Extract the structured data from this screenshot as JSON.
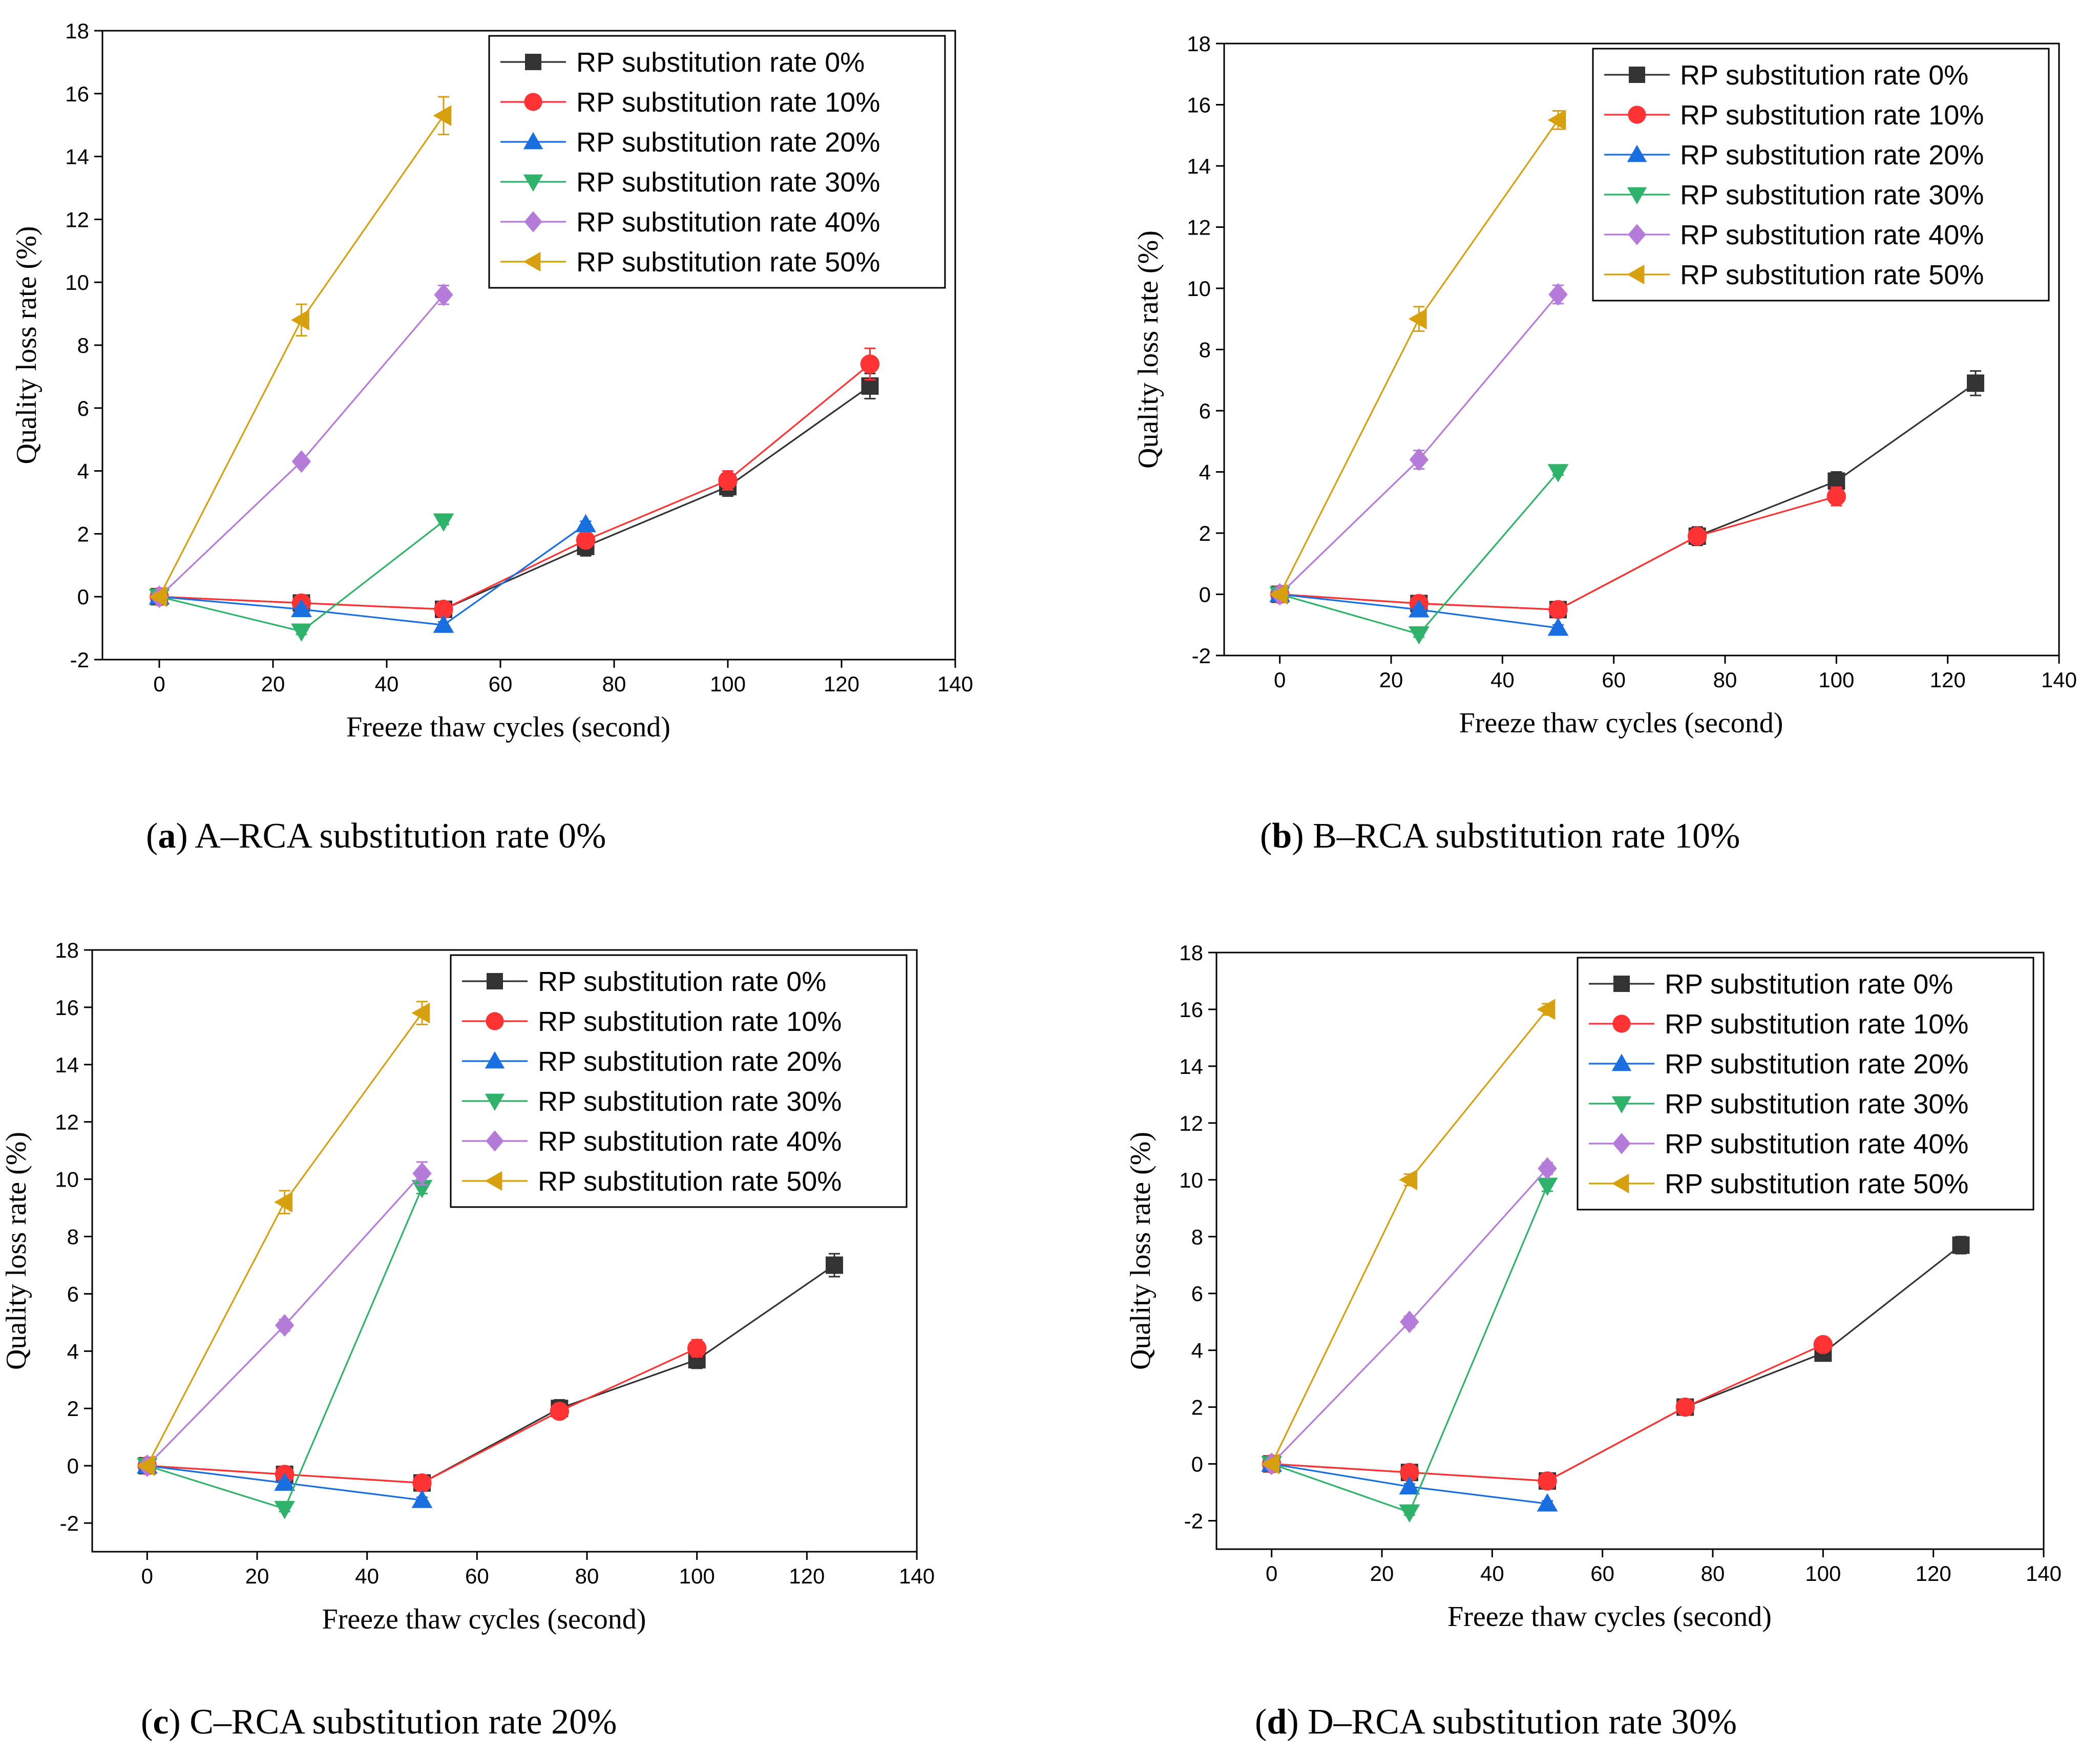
{
  "colors": {
    "rp0": "#333333",
    "rp10": "#ff3333",
    "rp20": "#1a6fe0",
    "rp30": "#2fb36a",
    "rp40": "#b57bd8",
    "rp50": "#d6a00e"
  },
  "legend_entries": [
    "RP substitution rate 0%",
    "RP substitution rate 10%",
    "RP substitution rate 20%",
    "RP substitution rate 30%",
    "RP substitution rate 40%",
    "RP substitution rate 50%"
  ],
  "chart_data": [
    {
      "type": "line",
      "panel_letter": "a",
      "caption": "A–RCA substitution rate 0%",
      "xlabel": "Freeze thaw cycles (second)",
      "ylabel": "Quality loss rate (%)",
      "xlim": [
        -10,
        140
      ],
      "ylim": [
        -2,
        18
      ],
      "xticks": [
        0,
        20,
        40,
        60,
        80,
        100,
        120,
        140
      ],
      "yticks": [
        -2,
        0,
        2,
        4,
        6,
        8,
        10,
        12,
        14,
        16,
        18
      ],
      "legend_position": "top-right",
      "series": [
        {
          "name": "RP substitution rate 0%",
          "marker": "square",
          "x": [
            0,
            25,
            50,
            75,
            100,
            125
          ],
          "y": [
            0,
            -0.2,
            -0.4,
            1.6,
            3.5,
            6.7
          ],
          "err": [
            0.1,
            0.1,
            0.1,
            0.3,
            0.3,
            0.4
          ]
        },
        {
          "name": "RP substitution rate 10%",
          "marker": "circle",
          "x": [
            0,
            25,
            50,
            75,
            100,
            125
          ],
          "y": [
            0,
            -0.2,
            -0.4,
            1.8,
            3.7,
            7.4
          ],
          "err": [
            0.1,
            0.1,
            0.1,
            0.2,
            0.3,
            0.5
          ]
        },
        {
          "name": "RP substitution rate 20%",
          "marker": "triangle-up",
          "x": [
            0,
            25,
            50,
            75
          ],
          "y": [
            0,
            -0.4,
            -0.9,
            2.3
          ],
          "err": [
            0.1,
            0.1,
            0.1,
            0.1
          ]
        },
        {
          "name": "RP substitution rate 30%",
          "marker": "triangle-down",
          "x": [
            0,
            25,
            50
          ],
          "y": [
            0,
            -1.1,
            2.4
          ],
          "err": [
            0.1,
            0.1,
            0.1
          ]
        },
        {
          "name": "RP substitution rate 40%",
          "marker": "diamond",
          "x": [
            0,
            25,
            50
          ],
          "y": [
            0,
            4.3,
            9.6
          ],
          "err": [
            0.1,
            0.1,
            0.3
          ]
        },
        {
          "name": "RP substitution rate 50%",
          "marker": "triangle-left",
          "x": [
            0,
            25,
            50
          ],
          "y": [
            0,
            8.8,
            15.3
          ],
          "err": [
            0.1,
            0.5,
            0.6
          ]
        }
      ]
    },
    {
      "type": "line",
      "panel_letter": "b",
      "caption": "B–RCA substitution rate 10%",
      "xlabel": "Freeze thaw cycles (second)",
      "ylabel": "Quality loss rate (%)",
      "xlim": [
        -10,
        140
      ],
      "ylim": [
        -2,
        18
      ],
      "xticks": [
        0,
        20,
        40,
        60,
        80,
        100,
        120,
        140
      ],
      "yticks": [
        -2,
        0,
        2,
        4,
        6,
        8,
        10,
        12,
        14,
        16,
        18
      ],
      "legend_position": "top-right",
      "series": [
        {
          "name": "RP substitution rate 0%",
          "marker": "square",
          "x": [
            0,
            25,
            50,
            75,
            100,
            125
          ],
          "y": [
            0,
            -0.3,
            -0.5,
            1.9,
            3.7,
            6.9
          ],
          "err": [
            0.1,
            0.1,
            0.1,
            0.3,
            0.3,
            0.4
          ]
        },
        {
          "name": "RP substitution rate 10%",
          "marker": "circle",
          "x": [
            0,
            25,
            50,
            75,
            100
          ],
          "y": [
            0,
            -0.3,
            -0.5,
            1.9,
            3.2
          ],
          "err": [
            0.1,
            0.1,
            0.1,
            0.2,
            0.3
          ]
        },
        {
          "name": "RP substitution rate 20%",
          "marker": "triangle-up",
          "x": [
            0,
            25,
            50
          ],
          "y": [
            0,
            -0.5,
            -1.1
          ],
          "err": [
            0.1,
            0.1,
            0.1
          ]
        },
        {
          "name": "RP substitution rate 30%",
          "marker": "triangle-down",
          "x": [
            0,
            25,
            50
          ],
          "y": [
            0,
            -1.3,
            4.0
          ],
          "err": [
            0.1,
            0.1,
            0.1
          ]
        },
        {
          "name": "RP substitution rate 40%",
          "marker": "diamond",
          "x": [
            0,
            25,
            50
          ],
          "y": [
            0,
            4.4,
            9.8
          ],
          "err": [
            0.1,
            0.3,
            0.3
          ]
        },
        {
          "name": "RP substitution rate 50%",
          "marker": "triangle-left",
          "x": [
            0,
            25,
            50
          ],
          "y": [
            0,
            9.0,
            15.5
          ],
          "err": [
            0.1,
            0.4,
            0.3
          ]
        }
      ]
    },
    {
      "type": "line",
      "panel_letter": "c",
      "caption": "C–RCA substitution rate 20%",
      "xlabel": "Freeze thaw cycles (second)",
      "ylabel": "Quality loss rate (%)",
      "xlim": [
        -10,
        140
      ],
      "ylim": [
        -3,
        18
      ],
      "xticks": [
        0,
        20,
        40,
        60,
        80,
        100,
        120,
        140
      ],
      "yticks": [
        -2,
        0,
        2,
        4,
        6,
        8,
        10,
        12,
        14,
        16,
        18
      ],
      "legend_position": "top-right",
      "series": [
        {
          "name": "RP substitution rate 0%",
          "marker": "square",
          "x": [
            0,
            25,
            50,
            75,
            100,
            125
          ],
          "y": [
            0,
            -0.3,
            -0.6,
            2.0,
            3.7,
            7.0
          ],
          "err": [
            0.1,
            0.1,
            0.1,
            0.3,
            0.3,
            0.4
          ]
        },
        {
          "name": "RP substitution rate 10%",
          "marker": "circle",
          "x": [
            0,
            25,
            50,
            75,
            100
          ],
          "y": [
            0,
            -0.3,
            -0.6,
            1.9,
            4.1
          ],
          "err": [
            0.1,
            0.1,
            0.1,
            0.2,
            0.3
          ]
        },
        {
          "name": "RP substitution rate 20%",
          "marker": "triangle-up",
          "x": [
            0,
            25,
            50
          ],
          "y": [
            0,
            -0.6,
            -1.2
          ],
          "err": [
            0.1,
            0.1,
            0.1
          ]
        },
        {
          "name": "RP substitution rate 30%",
          "marker": "triangle-down",
          "x": [
            0,
            25,
            50
          ],
          "y": [
            0,
            -1.5,
            9.7
          ],
          "err": [
            0.1,
            0.1,
            0.2
          ]
        },
        {
          "name": "RP substitution rate 40%",
          "marker": "diamond",
          "x": [
            0,
            25,
            50
          ],
          "y": [
            0,
            4.9,
            10.2
          ],
          "err": [
            0.1,
            0.2,
            0.4
          ]
        },
        {
          "name": "RP substitution rate 50%",
          "marker": "triangle-left",
          "x": [
            0,
            25,
            50
          ],
          "y": [
            0,
            9.2,
            15.8
          ],
          "err": [
            0.1,
            0.4,
            0.4
          ]
        }
      ]
    },
    {
      "type": "line",
      "panel_letter": "d",
      "caption": "D–RCA substitution rate 30%",
      "xlabel": "Freeze thaw cycles (second)",
      "ylabel": "Quality loss rate (%)",
      "xlim": [
        -10,
        140
      ],
      "ylim": [
        -3,
        18
      ],
      "xticks": [
        0,
        20,
        40,
        60,
        80,
        100,
        120,
        140
      ],
      "yticks": [
        -2,
        0,
        2,
        4,
        6,
        8,
        10,
        12,
        14,
        16,
        18
      ],
      "legend_position": "top-right",
      "series": [
        {
          "name": "RP substitution rate 0%",
          "marker": "square",
          "x": [
            0,
            25,
            50,
            75,
            100,
            125
          ],
          "y": [
            0,
            -0.3,
            -0.6,
            2.0,
            3.9,
            7.7
          ],
          "err": [
            0.1,
            0.1,
            0.1,
            0.1,
            0.2,
            0.3
          ]
        },
        {
          "name": "RP substitution rate 10%",
          "marker": "circle",
          "x": [
            0,
            25,
            50,
            75,
            100
          ],
          "y": [
            0,
            -0.3,
            -0.6,
            2.0,
            4.2
          ],
          "err": [
            0.1,
            0.1,
            0.1,
            0.1,
            0.2
          ]
        },
        {
          "name": "RP substitution rate 20%",
          "marker": "triangle-up",
          "x": [
            0,
            25,
            50
          ],
          "y": [
            0,
            -0.8,
            -1.4
          ],
          "err": [
            0.1,
            0.1,
            0.1
          ]
        },
        {
          "name": "RP substitution rate 30%",
          "marker": "triangle-down",
          "x": [
            0,
            25,
            50
          ],
          "y": [
            0,
            -1.7,
            9.8
          ],
          "err": [
            0.1,
            0.1,
            0.2
          ]
        },
        {
          "name": "RP substitution rate 40%",
          "marker": "diamond",
          "x": [
            0,
            25,
            50
          ],
          "y": [
            0,
            5.0,
            10.4
          ],
          "err": [
            0.1,
            0.2,
            0.2
          ]
        },
        {
          "name": "RP substitution rate 50%",
          "marker": "triangle-left",
          "x": [
            0,
            25,
            50
          ],
          "y": [
            0,
            10.0,
            16.0
          ],
          "err": [
            0.1,
            0.2,
            0.2
          ]
        }
      ]
    }
  ]
}
